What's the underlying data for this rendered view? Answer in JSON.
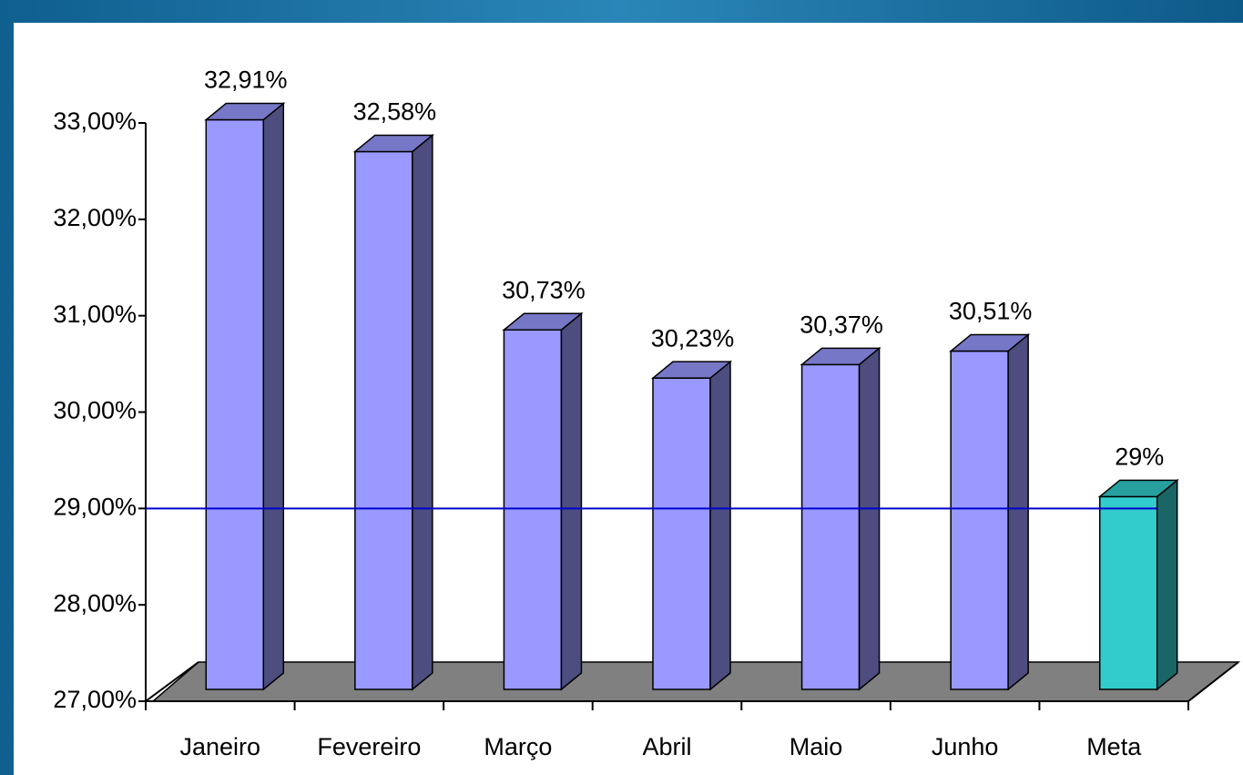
{
  "chart_data": {
    "type": "bar3d",
    "categories": [
      "Janeiro",
      "Fevereiro",
      "Março",
      "Abril",
      "Maio",
      "Junho",
      "Meta"
    ],
    "values": [
      32.91,
      32.58,
      30.73,
      30.23,
      30.37,
      30.51,
      29
    ],
    "value_labels": [
      "32,91%",
      "32,58%",
      "30,73%",
      "30,23%",
      "30,37%",
      "30,51%",
      "29%"
    ],
    "colors": [
      "#9999ff",
      "#9999ff",
      "#9999ff",
      "#9999ff",
      "#9999ff",
      "#9999ff",
      "#33cccc"
    ],
    "ylim": [
      27,
      33
    ],
    "yticks": [
      {
        "value": 27,
        "label": "27,00%"
      },
      {
        "value": 28,
        "label": "28,00%"
      },
      {
        "value": 29,
        "label": "29,00%"
      },
      {
        "value": 30,
        "label": "30,00%"
      },
      {
        "value": 31,
        "label": "31,00%"
      },
      {
        "value": 32,
        "label": "32,00%"
      },
      {
        "value": 33,
        "label": "33,00%"
      }
    ],
    "target_line": {
      "value": 29,
      "color": "#0000cc"
    },
    "floor_color": "#808080"
  }
}
